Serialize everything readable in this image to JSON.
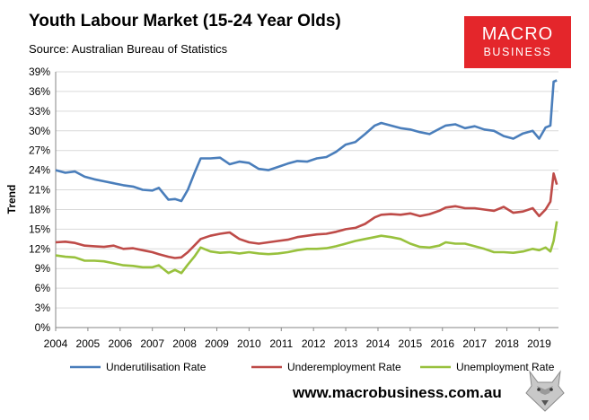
{
  "header": {
    "title": "Youth Labour Market (15-24 Year Olds)",
    "source": "Source: Australian Bureau of Statistics"
  },
  "logo": {
    "line1": "MACRO",
    "line2": "BUSINESS"
  },
  "footer": {
    "url": "www.macrobusiness.com.au"
  },
  "colors": {
    "underutilisation": "#4a7ebb",
    "underemployment": "#be4b48",
    "unemployment": "#98c13d",
    "grid": "#d9d9d9",
    "plot_bg": "#f2f2f2",
    "logo_bg": "#e4262b"
  },
  "chart_data": {
    "type": "line",
    "title": "Youth Labour Market (15-24 Year Olds)",
    "ylabel": "Trend",
    "xlabel": "",
    "xlim": [
      2004,
      2019.6
    ],
    "ylim": [
      0,
      39
    ],
    "yticks": [
      "0%",
      "3%",
      "6%",
      "9%",
      "12%",
      "15%",
      "18%",
      "21%",
      "24%",
      "27%",
      "30%",
      "33%",
      "36%",
      "39%"
    ],
    "xticks": [
      "2004",
      "2005",
      "2006",
      "2007",
      "2008",
      "2009",
      "2010",
      "2011",
      "2012",
      "2013",
      "2014",
      "2015",
      "2016",
      "2017",
      "2018",
      "2019"
    ],
    "grid": true,
    "legend": "bottom",
    "series": [
      {
        "name": "Underutilisation Rate",
        "x": [
          2004.0,
          2004.3,
          2004.6,
          2004.9,
          2005.2,
          2005.5,
          2005.8,
          2006.1,
          2006.4,
          2006.7,
          2007.0,
          2007.2,
          2007.5,
          2007.7,
          2007.9,
          2008.1,
          2008.3,
          2008.5,
          2008.8,
          2009.1,
          2009.4,
          2009.7,
          2010.0,
          2010.3,
          2010.6,
          2010.9,
          2011.2,
          2011.5,
          2011.8,
          2012.1,
          2012.4,
          2012.7,
          2013.0,
          2013.3,
          2013.6,
          2013.9,
          2014.1,
          2014.4,
          2014.7,
          2015.0,
          2015.3,
          2015.6,
          2015.9,
          2016.1,
          2016.4,
          2016.7,
          2017.0,
          2017.3,
          2017.6,
          2017.9,
          2018.2,
          2018.5,
          2018.8,
          2019.0,
          2019.2,
          2019.35,
          2019.45,
          2019.55
        ],
        "values": [
          24.0,
          23.6,
          23.8,
          23.0,
          22.6,
          22.3,
          22.0,
          21.7,
          21.5,
          21.0,
          20.9,
          21.3,
          19.5,
          19.6,
          19.3,
          21.0,
          23.5,
          25.8,
          25.8,
          25.9,
          24.9,
          25.3,
          25.1,
          24.2,
          24.0,
          24.5,
          25.0,
          25.4,
          25.3,
          25.8,
          26.0,
          26.8,
          27.9,
          28.3,
          29.5,
          30.8,
          31.2,
          30.8,
          30.4,
          30.2,
          29.8,
          29.5,
          30.3,
          30.8,
          31.0,
          30.4,
          30.7,
          30.2,
          30.0,
          29.2,
          28.8,
          29.6,
          30.0,
          28.8,
          30.5,
          30.8,
          37.5,
          37.7
        ]
      },
      {
        "name": "Underemployment Rate",
        "x": [
          2004.0,
          2004.3,
          2004.6,
          2004.9,
          2005.2,
          2005.5,
          2005.8,
          2006.1,
          2006.4,
          2006.7,
          2007.0,
          2007.2,
          2007.5,
          2007.7,
          2007.9,
          2008.1,
          2008.3,
          2008.5,
          2008.8,
          2009.1,
          2009.4,
          2009.7,
          2010.0,
          2010.3,
          2010.6,
          2010.9,
          2011.2,
          2011.5,
          2011.8,
          2012.1,
          2012.4,
          2012.7,
          2013.0,
          2013.3,
          2013.6,
          2013.9,
          2014.1,
          2014.4,
          2014.7,
          2015.0,
          2015.3,
          2015.6,
          2015.9,
          2016.1,
          2016.4,
          2016.7,
          2017.0,
          2017.3,
          2017.6,
          2017.9,
          2018.2,
          2018.5,
          2018.8,
          2019.0,
          2019.2,
          2019.35,
          2019.45,
          2019.55
        ],
        "values": [
          13.0,
          13.1,
          12.9,
          12.5,
          12.4,
          12.3,
          12.5,
          12.0,
          12.1,
          11.8,
          11.5,
          11.2,
          10.8,
          10.6,
          10.7,
          11.5,
          12.5,
          13.5,
          14.0,
          14.3,
          14.5,
          13.5,
          13.0,
          12.8,
          13.0,
          13.2,
          13.4,
          13.8,
          14.0,
          14.2,
          14.3,
          14.6,
          15.0,
          15.2,
          15.8,
          16.8,
          17.2,
          17.3,
          17.2,
          17.4,
          17.0,
          17.3,
          17.8,
          18.3,
          18.5,
          18.2,
          18.2,
          18.0,
          17.8,
          18.4,
          17.5,
          17.7,
          18.2,
          17.0,
          18.0,
          19.2,
          23.5,
          21.8
        ]
      },
      {
        "name": "Unemployment Rate",
        "x": [
          2004.0,
          2004.3,
          2004.6,
          2004.9,
          2005.2,
          2005.5,
          2005.8,
          2006.1,
          2006.4,
          2006.7,
          2007.0,
          2007.2,
          2007.5,
          2007.7,
          2007.9,
          2008.1,
          2008.3,
          2008.5,
          2008.8,
          2009.1,
          2009.4,
          2009.7,
          2010.0,
          2010.3,
          2010.6,
          2010.9,
          2011.2,
          2011.5,
          2011.8,
          2012.1,
          2012.4,
          2012.7,
          2013.0,
          2013.3,
          2013.6,
          2013.9,
          2014.1,
          2014.4,
          2014.7,
          2015.0,
          2015.3,
          2015.6,
          2015.9,
          2016.1,
          2016.4,
          2016.7,
          2017.0,
          2017.3,
          2017.6,
          2017.9,
          2018.2,
          2018.5,
          2018.8,
          2019.0,
          2019.2,
          2019.35,
          2019.45,
          2019.55
        ],
        "values": [
          11.0,
          10.8,
          10.7,
          10.2,
          10.2,
          10.1,
          9.8,
          9.5,
          9.4,
          9.2,
          9.2,
          9.5,
          8.3,
          8.8,
          8.3,
          9.6,
          10.8,
          12.2,
          11.6,
          11.4,
          11.5,
          11.3,
          11.5,
          11.3,
          11.2,
          11.3,
          11.5,
          11.8,
          12.0,
          12.0,
          12.1,
          12.4,
          12.8,
          13.2,
          13.5,
          13.8,
          14.0,
          13.8,
          13.5,
          12.8,
          12.3,
          12.2,
          12.5,
          13.0,
          12.8,
          12.8,
          12.4,
          12.0,
          11.5,
          11.5,
          11.4,
          11.6,
          12.0,
          11.8,
          12.2,
          11.6,
          13.2,
          16.2
        ]
      }
    ]
  }
}
